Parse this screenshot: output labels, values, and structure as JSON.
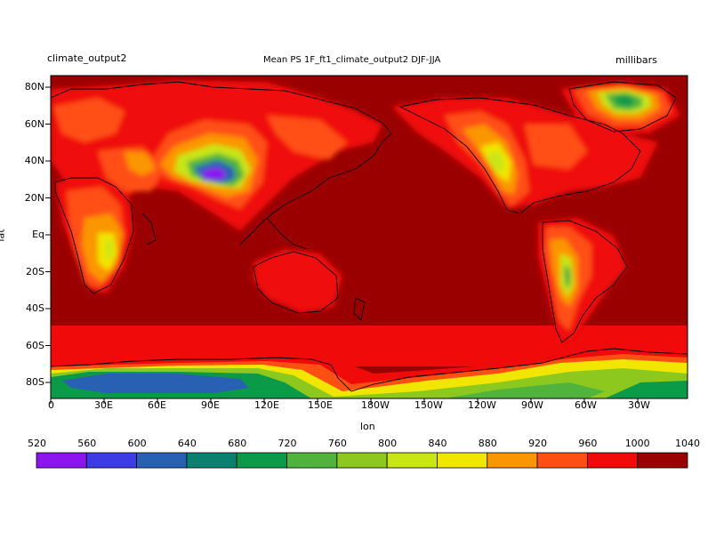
{
  "header": {
    "left_label": "climate_output2",
    "center_label": "Mean PS 1F_ft1_climate_output2 DJF-JJA",
    "right_label": "millibars"
  },
  "axes": {
    "xlabel": "lon",
    "ylabel": "lat",
    "lat_ticks": [
      "80N",
      "60N",
      "40N",
      "20N",
      "Eq",
      "20S",
      "40S",
      "60S",
      "80S"
    ],
    "lon_ticks": [
      "0",
      "30E",
      "60E",
      "90E",
      "120E",
      "150E",
      "180W",
      "150W",
      "120W",
      "90W",
      "60W",
      "30W"
    ]
  },
  "colorbar": {
    "levels": [
      "520",
      "560",
      "600",
      "640",
      "680",
      "720",
      "760",
      "800",
      "840",
      "880",
      "920",
      "960",
      "1000",
      "1040"
    ],
    "colors": [
      "#8c14f0",
      "#3c3ce6",
      "#2860b4",
      "#0a8070",
      "#0a9a48",
      "#50b43c",
      "#8cc81e",
      "#c8e614",
      "#f0e600",
      "#fa9600",
      "#ff5014",
      "#f00a0a",
      "#9b0000"
    ]
  },
  "map": {
    "projection": "cylindrical equidistant",
    "field": "surface pressure",
    "units": "millibars"
  }
}
